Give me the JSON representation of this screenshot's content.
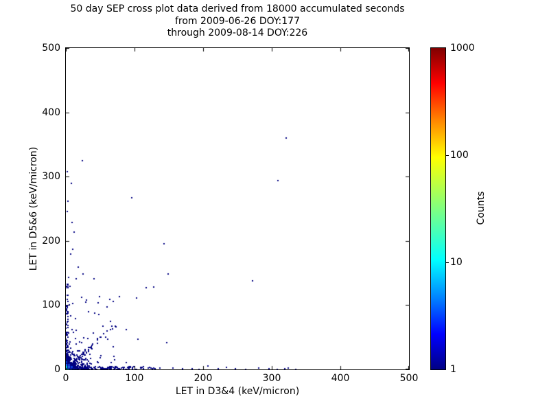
{
  "title": {
    "line1": "50 day SEP cross plot data derived from 18000 accumulated seconds",
    "line2": "from 2009-06-26 DOY:177",
    "line3": "through 2009-08-14 DOY:226"
  },
  "chart_data": {
    "type": "scatter",
    "subtype": "2d-histogram cross plot, log-scaled counts, jet colormap",
    "xlabel": "LET in D3&4 (keV/micron)",
    "ylabel": "LET in D5&6 (keV/micron)",
    "xlim": [
      0,
      500
    ],
    "ylim": [
      0,
      500
    ],
    "x_ticks": [
      0,
      100,
      200,
      300,
      400,
      500
    ],
    "y_ticks": [
      0,
      100,
      200,
      300,
      400,
      500
    ],
    "grid": false,
    "point_color_default": "#000080",
    "colorbar": {
      "label": "Counts",
      "scale": "log",
      "min": 1,
      "max": 1000,
      "ticks": [
        1,
        10,
        100,
        1000
      ],
      "interior_tick_marks": [
        10,
        100
      ],
      "colormap": "jet",
      "gradient_stops": [
        {
          "p": 0,
          "c": "#000083"
        },
        {
          "p": 11,
          "c": "#0000ff"
        },
        {
          "p": 22,
          "c": "#0080ff"
        },
        {
          "p": 34,
          "c": "#00ffff"
        },
        {
          "p": 50,
          "c": "#80ff80"
        },
        {
          "p": 66,
          "c": "#ffff00"
        },
        {
          "p": 78,
          "c": "#ff8000"
        },
        {
          "p": 89,
          "c": "#ff0000"
        },
        {
          "p": 100,
          "c": "#800000"
        }
      ]
    },
    "outlier_points": [
      [
        321,
        360
      ],
      [
        24,
        325
      ],
      [
        2,
        308
      ],
      [
        8,
        290
      ],
      [
        309,
        294
      ],
      [
        96,
        267
      ],
      [
        3,
        262
      ],
      [
        2,
        246
      ],
      [
        9,
        229
      ],
      [
        12,
        214
      ],
      [
        143,
        195
      ],
      [
        10,
        187
      ],
      [
        7,
        180
      ],
      [
        18,
        159
      ],
      [
        25,
        149
      ],
      [
        149,
        149
      ],
      [
        4,
        143
      ],
      [
        15,
        141
      ],
      [
        41,
        141
      ],
      [
        272,
        138
      ],
      [
        6,
        129
      ],
      [
        117,
        127
      ],
      [
        128,
        128
      ],
      [
        2,
        115
      ],
      [
        78,
        113
      ],
      [
        30,
        108
      ],
      [
        5,
        100
      ],
      [
        60,
        97
      ],
      [
        88,
        62
      ],
      [
        65,
        75
      ],
      [
        48,
        86
      ],
      [
        147,
        42
      ],
      [
        156,
        2
      ],
      [
        170,
        1
      ],
      [
        184,
        1
      ],
      [
        194,
        0
      ],
      [
        207,
        5
      ],
      [
        222,
        1
      ],
      [
        234,
        3
      ],
      [
        247,
        1
      ],
      [
        262,
        0
      ],
      [
        281,
        2
      ],
      [
        296,
        1
      ],
      [
        308,
        0
      ],
      [
        319,
        1
      ],
      [
        324,
        2
      ],
      [
        335,
        0
      ]
    ],
    "hot_cells": [
      {
        "x": 0,
        "y": 0,
        "s": 4,
        "c": "#22cc44"
      },
      {
        "x": 0,
        "y": 4,
        "s": 3,
        "c": "#00d8d8"
      },
      {
        "x": 3,
        "y": 0,
        "s": 3,
        "c": "#00c0f0"
      },
      {
        "x": 0,
        "y": 8,
        "s": 3,
        "c": "#2070ff"
      },
      {
        "x": 4,
        "y": 4,
        "s": 3,
        "c": "#2060f0"
      },
      {
        "x": 7,
        "y": 0,
        "s": 3,
        "c": "#1a50e8"
      },
      {
        "x": 0,
        "y": 12,
        "s": 3,
        "c": "#0038cc"
      },
      {
        "x": 8,
        "y": 4,
        "s": 3,
        "c": "#0c3cd8"
      },
      {
        "x": 4,
        "y": 8,
        "s": 3,
        "c": "#0c3cd8"
      },
      {
        "x": 11,
        "y": 0,
        "s": 3,
        "c": "#0028b0"
      },
      {
        "x": 0,
        "y": 16,
        "s": 2,
        "c": "#001f9e"
      },
      {
        "x": 15,
        "y": 0,
        "s": 2,
        "c": "#001f9e"
      }
    ],
    "clusters": [
      {
        "name": "core-blob",
        "kind": "exp2",
        "n": 430,
        "scale": 9,
        "max": 95
      },
      {
        "name": "diagonal-band",
        "kind": "diag",
        "n": 55,
        "len": 75,
        "slope": 0.95,
        "jitter": 8
      },
      {
        "name": "bottom-band",
        "kind": "band-x",
        "n": 230,
        "xmax": 140,
        "pow": 2.2,
        "thick": 4.5
      },
      {
        "name": "left-band",
        "kind": "band-y",
        "n": 110,
        "ymax": 135,
        "pow": 2.0,
        "thick": 3.5
      },
      {
        "name": "mid-sparse",
        "kind": "uniform",
        "n": 40,
        "xmax": 105,
        "ymax": 115
      }
    ],
    "seed": 1337
  }
}
